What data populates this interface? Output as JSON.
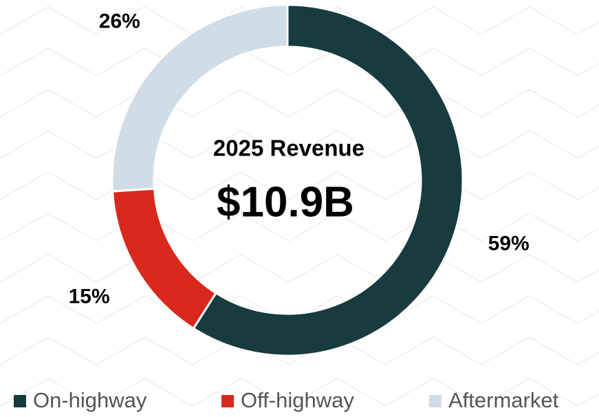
{
  "chart_data": {
    "type": "donut",
    "center_title": "2025 Revenue",
    "center_value": "$10.9B",
    "categories": [
      "On-highway",
      "Off-highway",
      "Aftermarket"
    ],
    "values": [
      59,
      15,
      26
    ],
    "value_labels": [
      "59%",
      "15%",
      "26%"
    ],
    "colors": [
      "#173b3f",
      "#d9291c",
      "#d0dce6"
    ],
    "legend": "bottom"
  }
}
